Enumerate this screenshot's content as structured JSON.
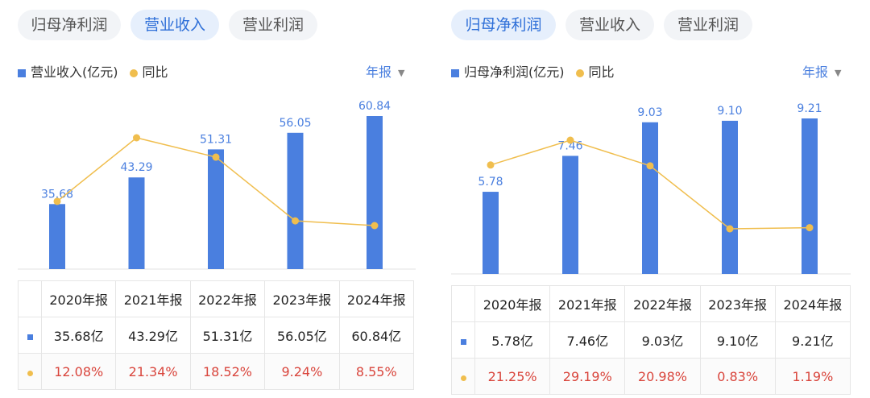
{
  "panels": [
    {
      "tabs": [
        {
          "label": "归母净利润",
          "active": false
        },
        {
          "label": "营业收入",
          "active": true
        },
        {
          "label": "营业利润",
          "active": false
        }
      ],
      "legend": {
        "bar": "营业收入(亿元)",
        "line": "同比"
      },
      "period": "年报",
      "chart_data": {
        "type": "bar",
        "categories": [
          "2020年报",
          "2021年报",
          "2022年报",
          "2023年报",
          "2024年报"
        ],
        "series": [
          {
            "name": "营业收入(亿元)",
            "values": [
              35.68,
              43.29,
              51.31,
              56.05,
              60.84
            ],
            "labels": [
              "35.68",
              "43.29",
              "51.31",
              "56.05",
              "60.84"
            ]
          },
          {
            "name": "同比",
            "type": "line",
            "values": [
              12.08,
              21.34,
              18.52,
              9.24,
              8.55
            ]
          }
        ]
      },
      "table": {
        "headers": [
          "2020年报",
          "2021年报",
          "2022年报",
          "2023年报",
          "2024年报"
        ],
        "values": [
          "35.68亿",
          "43.29亿",
          "51.31亿",
          "56.05亿",
          "60.84亿"
        ],
        "growth": [
          "12.08%",
          "21.34%",
          "18.52%",
          "9.24%",
          "8.55%"
        ]
      }
    },
    {
      "tabs": [
        {
          "label": "归母净利润",
          "active": true
        },
        {
          "label": "营业收入",
          "active": false
        },
        {
          "label": "营业利润",
          "active": false
        }
      ],
      "legend": {
        "bar": "归母净利润(亿元)",
        "line": "同比"
      },
      "period": "年报",
      "chart_data": {
        "type": "bar",
        "categories": [
          "2020年报",
          "2021年报",
          "2022年报",
          "2023年报",
          "2024年报"
        ],
        "series": [
          {
            "name": "归母净利润(亿元)",
            "values": [
              5.78,
              7.46,
              9.03,
              9.1,
              9.21
            ],
            "labels": [
              "5.78",
              "7.46",
              "9.03",
              "9.10",
              "9.21"
            ]
          },
          {
            "name": "同比",
            "type": "line",
            "values": [
              21.25,
              29.19,
              20.98,
              0.83,
              1.19
            ]
          }
        ]
      },
      "table": {
        "headers": [
          "2020年报",
          "2021年报",
          "2022年报",
          "2023年报",
          "2024年报"
        ],
        "values": [
          "5.78亿",
          "7.46亿",
          "9.03亿",
          "9.10亿",
          "9.21亿"
        ],
        "growth": [
          "21.25%",
          "29.19%",
          "20.98%",
          "0.83%",
          "1.19%"
        ]
      }
    }
  ],
  "colors": {
    "bar": "#4a7fdf",
    "line": "#f0be4e",
    "active_tab": "#2e6fd8",
    "growth_text": "#d9453c"
  }
}
